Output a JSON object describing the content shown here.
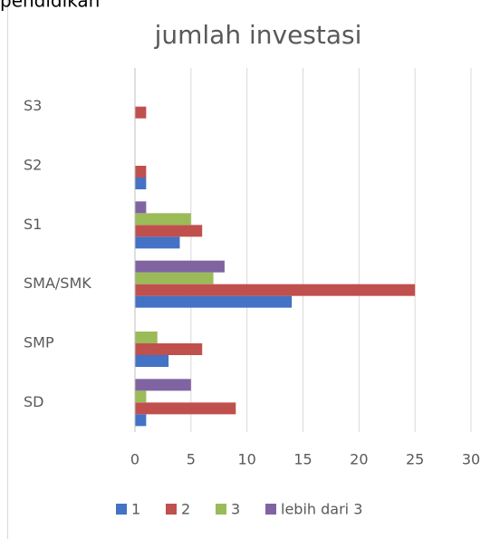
{
  "caption": "pendidikan",
  "chart_data": {
    "type": "barh",
    "title": "jumlah investasi",
    "categories": [
      "SD",
      "SMP",
      "SMA/SMK",
      "S1",
      "S2",
      "S3"
    ],
    "series": [
      {
        "name": "1",
        "color": "#4472c4",
        "values": [
          1,
          3,
          14,
          4,
          1,
          0
        ]
      },
      {
        "name": "2",
        "color": "#c0504d",
        "values": [
          9,
          6,
          25,
          6,
          1,
          1
        ]
      },
      {
        "name": "3",
        "color": "#9bbb59",
        "values": [
          1,
          2,
          7,
          5,
          0,
          0
        ]
      },
      {
        "name": "lebih dari 3",
        "color": "#8064a2",
        "values": [
          5,
          0,
          8,
          1,
          0,
          0
        ]
      }
    ],
    "xlim": [
      0,
      30
    ],
    "xticks": [
      0,
      5,
      10,
      15,
      20,
      25,
      30
    ],
    "grid": true,
    "legend": "bottom"
  }
}
